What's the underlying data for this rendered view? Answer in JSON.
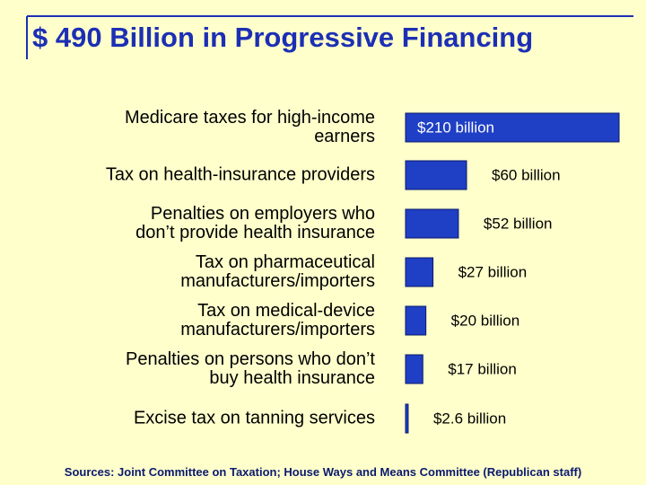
{
  "chart_data": {
    "type": "bar",
    "orientation": "horizontal",
    "title": "$ 490 Billion in Progressive Financing",
    "categories": [
      "Medicare taxes for high-income\nearners",
      "Tax on health-insurance providers",
      "Penalties on employers who\ndon’t provide health insurance",
      "Tax on pharmaceutical\nmanufacturers/importers",
      "Tax on medical-device\nmanufacturers/importers",
      "Penalties on persons who don’t\nbuy health insurance",
      "Excise tax on tanning services"
    ],
    "values": [
      210,
      60,
      52,
      27,
      20,
      17,
      2.6
    ],
    "value_labels": [
      "$210 billion",
      "$60 billion",
      "$52 billion",
      "$27 billion",
      "$20 billion",
      "$17 billion",
      "$2.6 billion"
    ],
    "color": "#1f3fc4",
    "source": "Sources: Joint Committee on Taxation; House Ways and Means Committee (Republican staff)"
  }
}
